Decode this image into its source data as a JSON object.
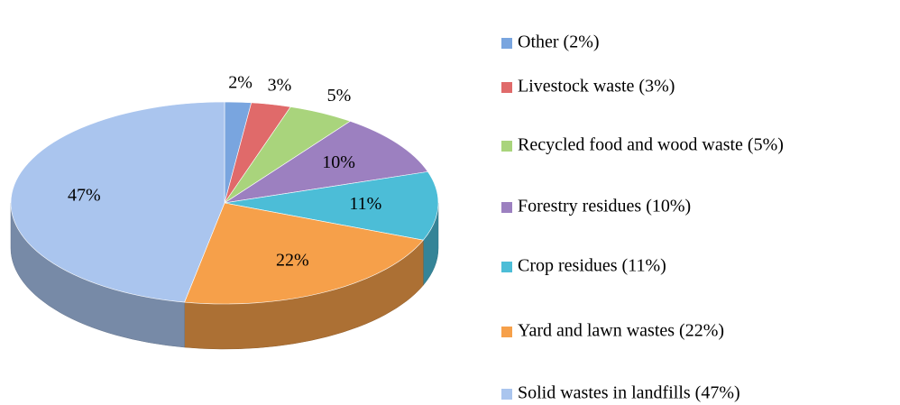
{
  "chart_data": {
    "type": "pie",
    "categories": [
      "Other (2%)",
      "Livestock waste (3%)",
      "Recycled food and wood waste (5%)",
      "Forestry residues (10%)",
      "Crop residues (11%)",
      "Yard and lawn wastes (22%)",
      "Solid wastes in landfills (47%)"
    ],
    "values": [
      2,
      3,
      5,
      10,
      11,
      22,
      47
    ],
    "value_labels": [
      "2%",
      "3%",
      "5%",
      "10%",
      "11%",
      "22%",
      "47%"
    ],
    "colors": [
      "#79a5df",
      "#e06a6a",
      "#a9d47c",
      "#9c80c0",
      "#4cbdd7",
      "#f6a04a",
      "#aac5ee"
    ],
    "legend": "right"
  }
}
